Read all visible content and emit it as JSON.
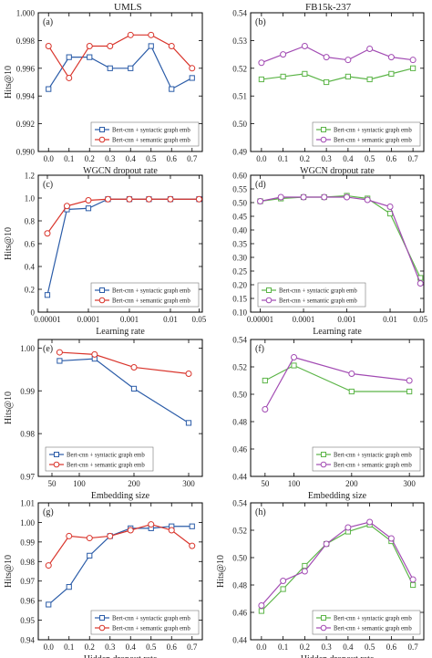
{
  "column_titles": [
    "UMLS",
    "FB15k-237"
  ],
  "colors": {
    "blue": "#2b5ca8",
    "red": "#d9342b",
    "green": "#5cb548",
    "purple": "#a24bb3"
  },
  "chart_data": [
    {
      "type": "line",
      "panel": "(a)",
      "ylabel": "Hits@10",
      "xlabel": "WGCN dropout rate",
      "ylim": [
        0.99,
        1.0
      ],
      "yticks": [
        "0.990",
        "0.992",
        "0.994",
        "0.996",
        "0.998",
        "1.000"
      ],
      "xticks": [
        "0.0",
        "0.1",
        "0.2",
        "0.3",
        "0.4",
        "0.5",
        "0.6",
        "0.7"
      ],
      "xlim": [
        -0.05,
        0.75
      ],
      "legend": "bottom-right",
      "series": [
        {
          "name": "Bert-cnn + syntactic graph emb",
          "color": "#2b5ca8",
          "marker": "square",
          "x": [
            0,
            0.1,
            0.2,
            0.3,
            0.4,
            0.5,
            0.6,
            0.7
          ],
          "values": [
            0.9945,
            0.9968,
            0.9968,
            0.996,
            0.996,
            0.9976,
            0.9945,
            0.9953
          ]
        },
        {
          "name": "Bert-cnn + semantic graph emb",
          "color": "#d9342b",
          "marker": "circle",
          "x": [
            0,
            0.1,
            0.2,
            0.3,
            0.4,
            0.5,
            0.6,
            0.7
          ],
          "values": [
            0.9976,
            0.9953,
            0.9976,
            0.9976,
            0.9984,
            0.9984,
            0.9976,
            0.996
          ]
        }
      ]
    },
    {
      "type": "line",
      "panel": "(b)",
      "ylabel": "",
      "xlabel": "WGCN dropout rate",
      "ylim": [
        0.49,
        0.54
      ],
      "yticks": [
        "0.49",
        "0.50",
        "0.51",
        "0.52",
        "0.53",
        "0.54"
      ],
      "xticks": [
        "0.0",
        "0.1",
        "0.2",
        "0.3",
        "0.4",
        "0.5",
        "0.6",
        "0.7"
      ],
      "xlim": [
        -0.05,
        0.75
      ],
      "legend": "bottom-right",
      "series": [
        {
          "name": "Bert-cnn + syntactic graph emb",
          "color": "#5cb548",
          "marker": "square",
          "x": [
            0,
            0.1,
            0.2,
            0.3,
            0.4,
            0.5,
            0.6,
            0.7
          ],
          "values": [
            0.516,
            0.517,
            0.518,
            0.515,
            0.517,
            0.516,
            0.518,
            0.52
          ]
        },
        {
          "name": "Bert-cnn + semantic graph emb",
          "color": "#a24bb3",
          "marker": "circle",
          "x": [
            0,
            0.1,
            0.2,
            0.3,
            0.4,
            0.5,
            0.6,
            0.7
          ],
          "values": [
            0.522,
            0.525,
            0.528,
            0.524,
            0.523,
            0.527,
            0.524,
            0.523
          ]
        }
      ]
    },
    {
      "type": "line",
      "panel": "(c)",
      "ylabel": "Hits@10",
      "xlabel": "Learning rate",
      "xscale": "log",
      "ylim": [
        0.0,
        1.2
      ],
      "yticks": [
        "0",
        "0.2",
        "0.4",
        "0.6",
        "0.8",
        "1.0",
        "1.2"
      ],
      "xticks": [
        "0.00001",
        "0.0001",
        "0.001",
        "0.01",
        "0.05"
      ],
      "xtick_values": [
        1e-05,
        0.0001,
        0.001,
        0.01,
        0.05
      ],
      "xlim": [
        6e-06,
        0.06
      ],
      "legend": "bottom-right",
      "series": [
        {
          "name": "Bert-cnn + syntactic graph emb",
          "color": "#2b5ca8",
          "marker": "square",
          "x": [
            1e-05,
            3e-05,
            0.0001,
            0.0003,
            0.001,
            0.003,
            0.01,
            0.05
          ],
          "values": [
            0.15,
            0.9,
            0.91,
            0.99,
            0.99,
            0.99,
            0.99,
            0.99
          ]
        },
        {
          "name": "Bert-cnn + semantic graph emb",
          "color": "#d9342b",
          "marker": "circle",
          "x": [
            1e-05,
            3e-05,
            0.0001,
            0.0003,
            0.001,
            0.003,
            0.01,
            0.05
          ],
          "values": [
            0.69,
            0.93,
            0.98,
            0.99,
            0.99,
            0.99,
            0.99,
            0.99
          ]
        }
      ]
    },
    {
      "type": "line",
      "panel": "(d)",
      "ylabel": "",
      "xlabel": "Learning rate",
      "xscale": "log",
      "ylim": [
        0.1,
        0.6
      ],
      "yticks": [
        "0.10",
        "0.15",
        "0.20",
        "0.25",
        "0.30",
        "0.35",
        "0.40",
        "0.45",
        "0.50",
        "0.55",
        "0.60"
      ],
      "xticks": [
        "0.00001",
        "0.0001",
        "0.001",
        "0.01",
        "0.05"
      ],
      "xtick_values": [
        1e-05,
        0.0001,
        0.001,
        0.01,
        0.05
      ],
      "xlim": [
        6e-06,
        0.06
      ],
      "legend": "bottom-left",
      "series": [
        {
          "name": "Bert-cnn + syntactic graph emb",
          "color": "#5cb548",
          "marker": "square",
          "x": [
            1e-05,
            3e-05,
            0.0001,
            0.0003,
            0.001,
            0.003,
            0.01,
            0.05
          ],
          "values": [
            0.505,
            0.515,
            0.52,
            0.52,
            0.525,
            0.515,
            0.46,
            0.225
          ]
        },
        {
          "name": "Bert-cnn + semantic graph emb",
          "color": "#a24bb3",
          "marker": "circle",
          "x": [
            1e-05,
            3e-05,
            0.0001,
            0.0003,
            0.001,
            0.003,
            0.01,
            0.05
          ],
          "values": [
            0.505,
            0.52,
            0.52,
            0.52,
            0.52,
            0.51,
            0.485,
            0.205
          ]
        }
      ]
    },
    {
      "type": "line",
      "panel": "(e)",
      "ylabel": "Hits@10",
      "xlabel": "Embedding size",
      "ylim": [
        0.97,
        1.002
      ],
      "yticks": [
        "0.97",
        "0.98",
        "0.99",
        "1.00"
      ],
      "xticks": [
        "50",
        "100",
        "200",
        "300"
      ],
      "xtick_values": [
        50,
        100,
        200,
        300
      ],
      "xlim": [
        25,
        325
      ],
      "legend": "bottom-left",
      "series": [
        {
          "name": "Bert-cnn + syntactic graph emb",
          "color": "#2b5ca8",
          "marker": "square",
          "x": [
            64,
            128,
            200,
            300
          ],
          "values": [
            0.997,
            0.9975,
            0.9905,
            0.9825
          ]
        },
        {
          "name": "Bert-cnn + semantic graph emb",
          "color": "#d9342b",
          "marker": "circle",
          "x": [
            64,
            128,
            200,
            300
          ],
          "values": [
            0.999,
            0.9985,
            0.9955,
            0.994
          ]
        }
      ]
    },
    {
      "type": "line",
      "panel": "(f)",
      "ylabel": "",
      "xlabel": "Embedding size",
      "ylim": [
        0.44,
        0.54
      ],
      "yticks": [
        "0.44",
        "0.46",
        "0.48",
        "0.50",
        "0.52",
        "0.54"
      ],
      "xticks": [
        "50",
        "100",
        "200",
        "300"
      ],
      "xtick_values": [
        50,
        100,
        200,
        300
      ],
      "xlim": [
        25,
        325
      ],
      "legend": "bottom-right",
      "series": [
        {
          "name": "Bert-cnn + syntactic graph emb",
          "color": "#5cb548",
          "marker": "square",
          "x": [
            50,
            100,
            200,
            300
          ],
          "values": [
            0.51,
            0.521,
            0.502,
            0.502
          ]
        },
        {
          "name": "Bert-cnn + semantic graph emb",
          "color": "#a24bb3",
          "marker": "circle",
          "x": [
            50,
            100,
            200,
            300
          ],
          "values": [
            0.489,
            0.527,
            0.515,
            0.51
          ]
        }
      ]
    },
    {
      "type": "line",
      "panel": "(g)",
      "ylabel": "Hits@10",
      "xlabel": "Hidden dropout rate",
      "ylim": [
        0.94,
        1.01
      ],
      "yticks": [
        "0.94",
        "0.95",
        "0.96",
        "0.97",
        "0.98",
        "0.99",
        "1.00",
        "1.01"
      ],
      "xticks": [
        "0.0",
        "0.1",
        "0.2",
        "0.3",
        "0.4",
        "0.5",
        "0.6",
        "0.7"
      ],
      "xlim": [
        -0.05,
        0.75
      ],
      "legend": "bottom-right",
      "series": [
        {
          "name": "Bert-cnn + syntactic graph emb",
          "color": "#2b5ca8",
          "marker": "square",
          "x": [
            0,
            0.1,
            0.2,
            0.3,
            0.4,
            0.5,
            0.6,
            0.7
          ],
          "values": [
            0.958,
            0.967,
            0.983,
            0.993,
            0.997,
            0.997,
            0.998,
            0.998
          ]
        },
        {
          "name": "Bert-cnn + semantic graph emb",
          "color": "#d9342b",
          "marker": "circle",
          "x": [
            0,
            0.1,
            0.2,
            0.3,
            0.4,
            0.5,
            0.6,
            0.7
          ],
          "values": [
            0.978,
            0.993,
            0.992,
            0.993,
            0.996,
            0.999,
            0.996,
            0.988
          ]
        }
      ]
    },
    {
      "type": "line",
      "panel": "(h)",
      "ylabel": "Hits@10",
      "xlabel": "Hidden dropout rate",
      "ylim": [
        0.44,
        0.54
      ],
      "yticks": [
        "0.44",
        "0.46",
        "0.48",
        "0.50",
        "0.52",
        "0.54"
      ],
      "xticks": [
        "0.0",
        "0.1",
        "0.2",
        "0.3",
        "0.4",
        "0.5",
        "0.6",
        "0.7"
      ],
      "xlim": [
        -0.05,
        0.75
      ],
      "legend": "bottom-right",
      "series": [
        {
          "name": "Bert-cnn + syntactic graph emb",
          "color": "#5cb548",
          "marker": "square",
          "x": [
            0,
            0.1,
            0.2,
            0.3,
            0.4,
            0.5,
            0.6,
            0.7
          ],
          "values": [
            0.461,
            0.477,
            0.494,
            0.51,
            0.519,
            0.524,
            0.512,
            0.48
          ]
        },
        {
          "name": "Bert-cnn + semantic graph emb",
          "color": "#a24bb3",
          "marker": "circle",
          "x": [
            0,
            0.1,
            0.2,
            0.3,
            0.4,
            0.5,
            0.6,
            0.7
          ],
          "values": [
            0.465,
            0.483,
            0.49,
            0.51,
            0.522,
            0.526,
            0.514,
            0.484
          ]
        }
      ]
    }
  ]
}
